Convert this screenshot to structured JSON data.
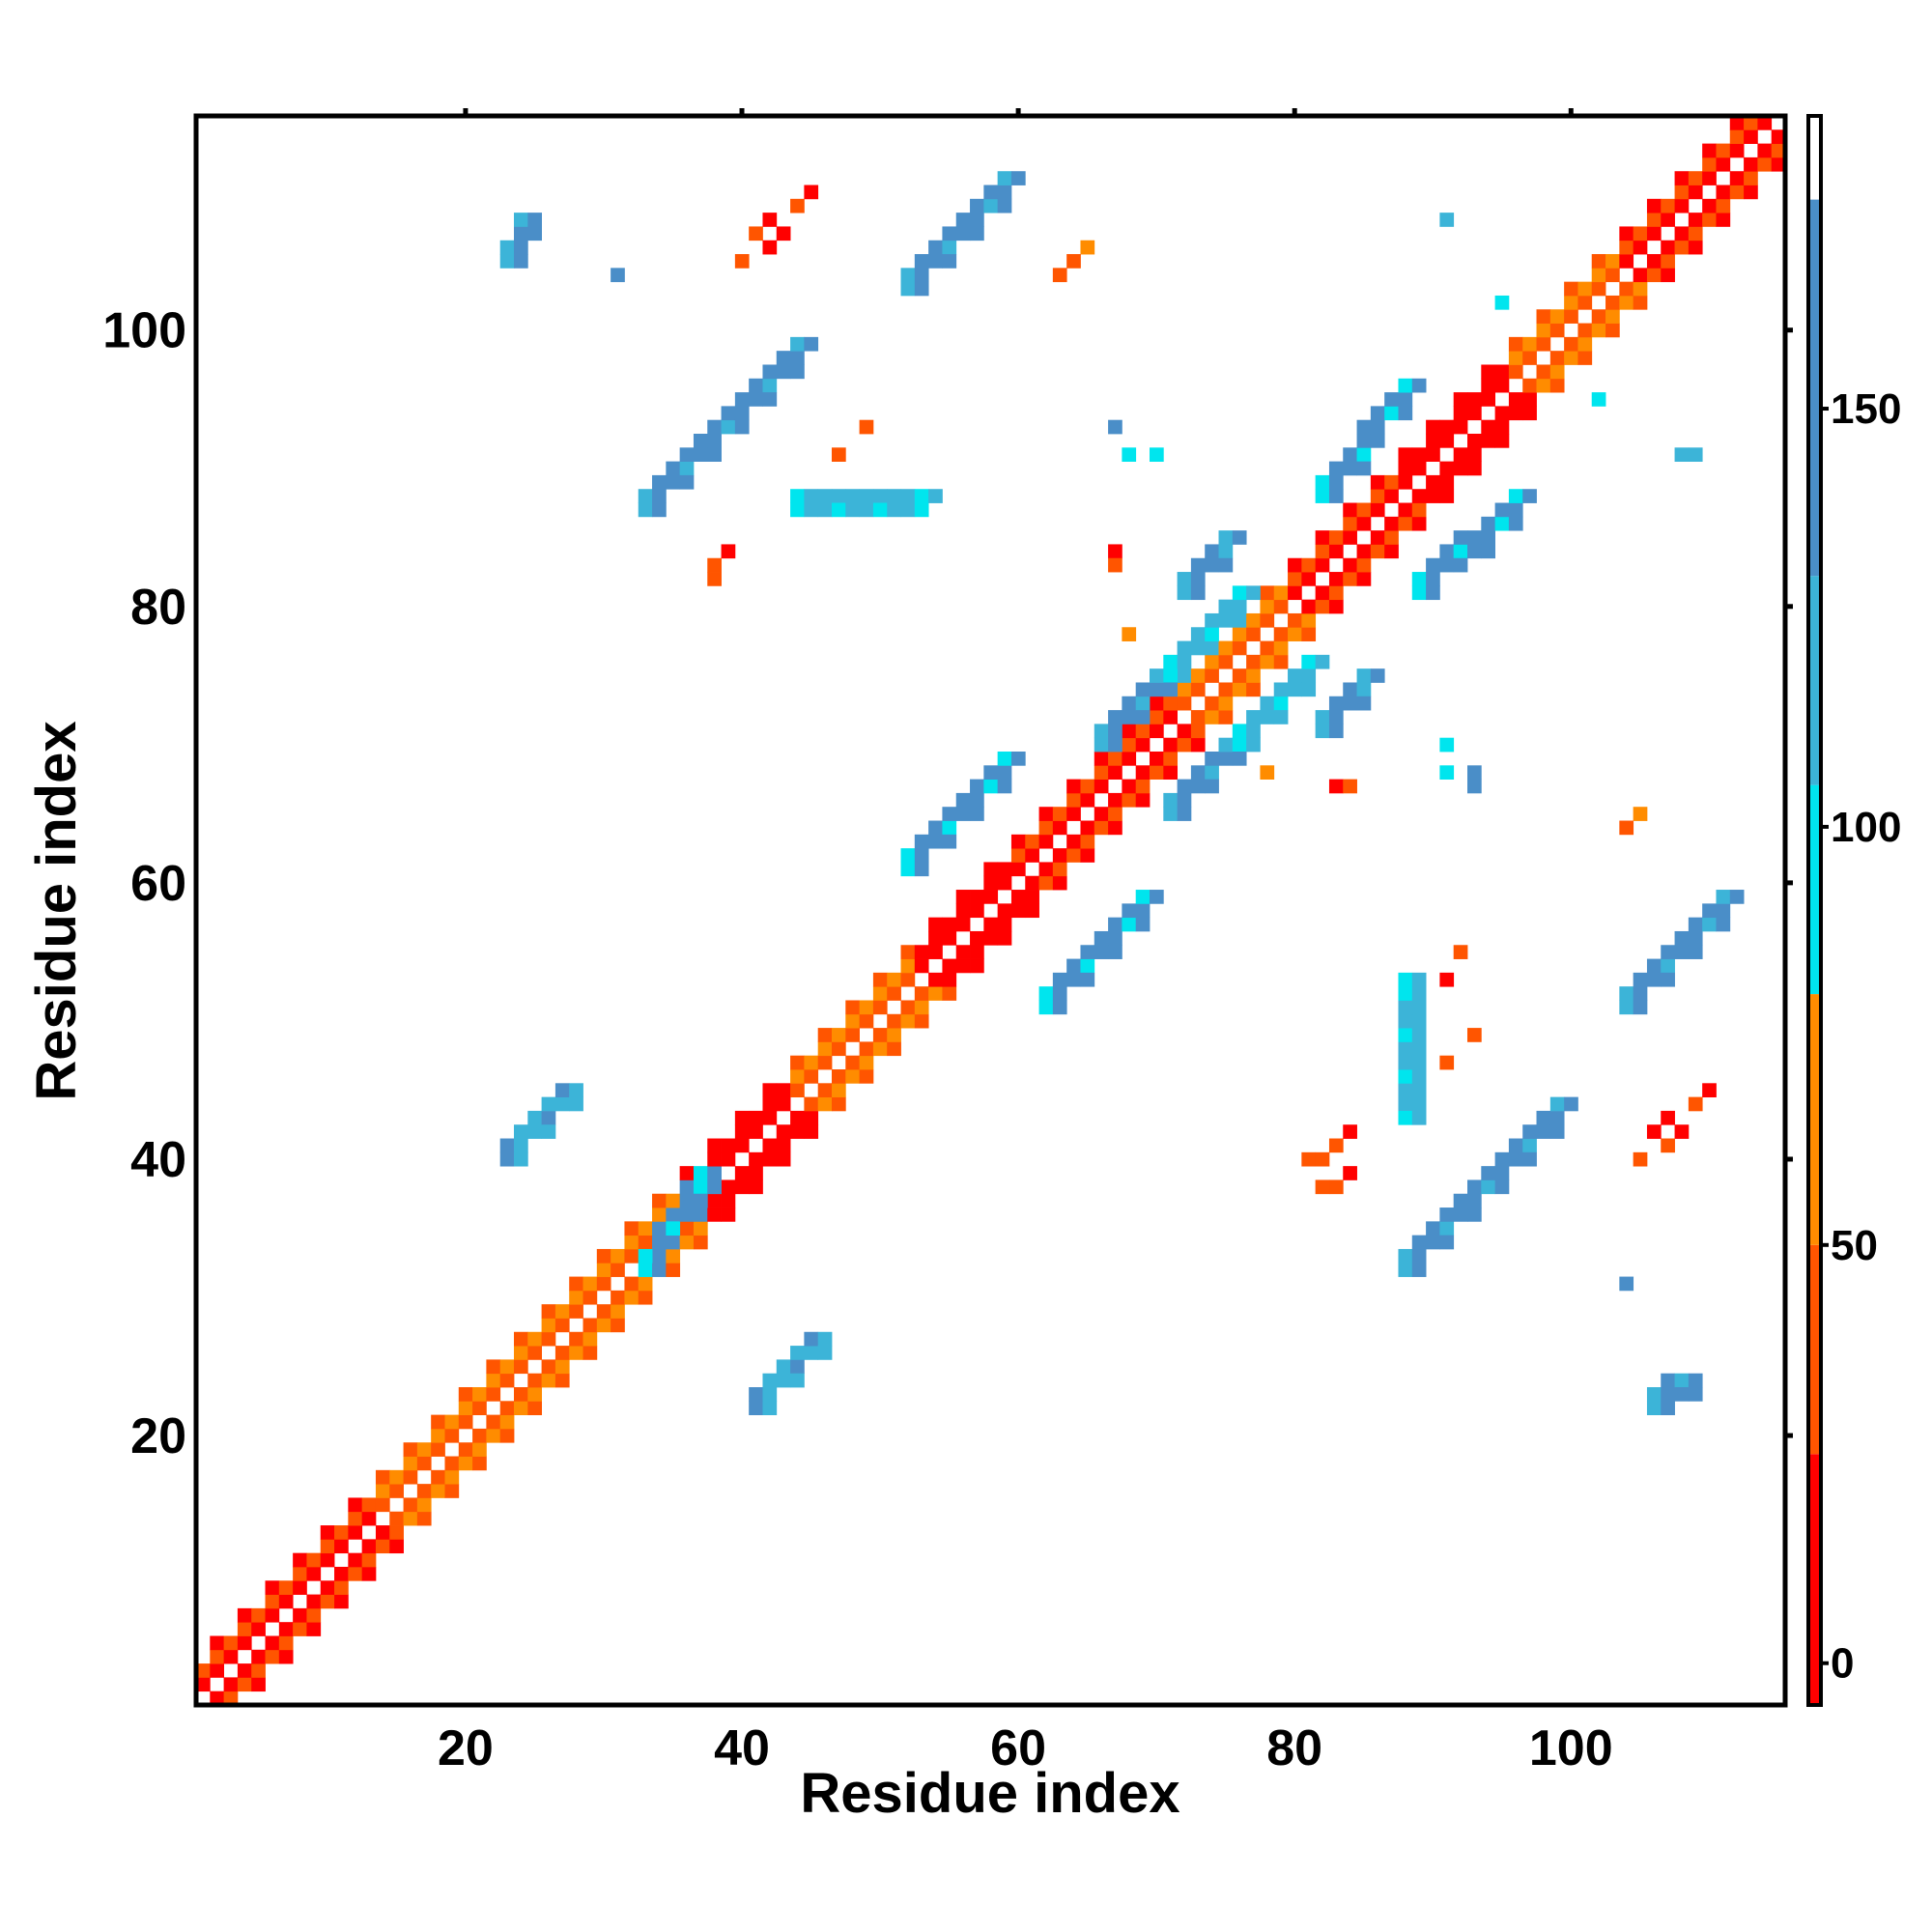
{
  "chart_data": {
    "type": "heatmap",
    "title": "",
    "xlabel": "Residue index",
    "ylabel": "Residue index",
    "xlim": [
      0.5,
      115.5
    ],
    "ylim": [
      0.5,
      115.5
    ],
    "xticks": [
      20,
      40,
      60,
      80,
      100
    ],
    "yticks": [
      20,
      40,
      60,
      80,
      100
    ],
    "colorbar": {
      "ticks": [
        0,
        50,
        100,
        150
      ],
      "range": [
        -5,
        185
      ],
      "bands": [
        {
          "from": -5,
          "to": 25,
          "color": "#ff0000"
        },
        {
          "from": 25,
          "to": 50,
          "color": "#ff5500"
        },
        {
          "from": 50,
          "to": 80,
          "color": "#ff8c00"
        },
        {
          "from": 80,
          "to": 105,
          "color": "#00e5ee"
        },
        {
          "from": 105,
          "to": 130,
          "color": "#3cb4d8"
        },
        {
          "from": 130,
          "to": 175,
          "color": "#4a8ec8"
        },
        {
          "from": 175,
          "to": 185,
          "color": "#ffffff"
        }
      ]
    },
    "colors": {
      "red": "#ff0000",
      "orange_red": "#ff5500",
      "orange": "#ff8c00",
      "cyan": "#00e5ee",
      "light_blue": "#3cb4d8",
      "blue": "#4a8ec8"
    },
    "diagonal": {
      "from": 1,
      "to": 115
    },
    "diagonal_bands": [
      {
        "from": 1,
        "to": 5,
        "near": "#ff0000",
        "far": "#ff5500"
      },
      {
        "from": 6,
        "to": 14,
        "near": "#ff0000",
        "far": "#ff5500"
      },
      {
        "from": 14,
        "to": 22,
        "near": "#ff5500",
        "far": "#ff8c00"
      },
      {
        "from": 22,
        "to": 36,
        "near": "#ff5500",
        "far": "#ff8c00"
      },
      {
        "from": 36,
        "to": 44,
        "near": "#ff0000",
        "far": "#ff0000"
      },
      {
        "from": 44,
        "to": 53,
        "near": "#ff5500",
        "far": "#ff8c00"
      },
      {
        "from": 53,
        "to": 60,
        "near": "#ff0000",
        "far": "#ff0000"
      },
      {
        "from": 60,
        "to": 72,
        "near": "#ff0000",
        "far": "#ff5500"
      },
      {
        "from": 72,
        "to": 80,
        "near": "#ff5500",
        "far": "#ff8c00"
      },
      {
        "from": 80,
        "to": 88,
        "near": "#ff0000",
        "far": "#ff5500"
      },
      {
        "from": 88,
        "to": 96,
        "near": "#ff0000",
        "far": "#ff0000"
      },
      {
        "from": 96,
        "to": 104,
        "near": "#ff5500",
        "far": "#ff8c00"
      },
      {
        "from": 104,
        "to": 115,
        "near": "#ff0000",
        "far": "#ff5500"
      }
    ],
    "strands": [
      {
        "x": [
          33,
          44
        ],
        "y": [
          88,
          99
        ],
        "main": "#4a8ec8",
        "edge": "#3cb4d8"
      },
      {
        "x": [
          44,
          53
        ],
        "y": [
          88,
          88
        ],
        "main": "#3cb4d8",
        "edge": "#00e5ee"
      },
      {
        "x": [
          88,
          99
        ],
        "y": [
          33,
          44
        ],
        "main": "#4a8ec8",
        "edge": "#3cb4d8"
      },
      {
        "x": [
          88,
          88
        ],
        "y": [
          44,
          53
        ],
        "main": "#3cb4d8",
        "edge": "#00e5ee"
      },
      {
        "x": [
          52,
          59
        ],
        "y": [
          104,
          111
        ],
        "main": "#4a8ec8",
        "edge": "#3cb4d8"
      },
      {
        "x": [
          104,
          111
        ],
        "y": [
          52,
          59
        ],
        "main": "#4a8ec8",
        "edge": "#3cb4d8"
      },
      {
        "x": [
          52,
          59
        ],
        "y": [
          62,
          69
        ],
        "main": "#4a8ec8",
        "edge": "#00e5ee"
      },
      {
        "x": [
          62,
          69
        ],
        "y": [
          52,
          59
        ],
        "main": "#4a8ec8",
        "edge": "#00e5ee"
      },
      {
        "x": [
          66,
          70
        ],
        "y": [
          71,
          75
        ],
        "main": "#4a8ec8",
        "edge": "#3cb4d8"
      },
      {
        "x": [
          71,
          75
        ],
        "y": [
          66,
          70
        ],
        "main": "#4a8ec8",
        "edge": "#3cb4d8"
      },
      {
        "x": [
          82,
          88
        ],
        "y": [
          89,
          96
        ],
        "main": "#4a8ec8",
        "edge": "#00e5ee"
      },
      {
        "x": [
          89,
          96
        ],
        "y": [
          82,
          88
        ],
        "main": "#4a8ec8",
        "edge": "#00e5ee"
      },
      {
        "x": [
          23,
          27
        ],
        "y": [
          41,
          45
        ],
        "main": "#3cb4d8",
        "edge": "#4a8ec8"
      },
      {
        "x": [
          41,
          45
        ],
        "y": [
          23,
          27
        ],
        "main": "#3cb4d8",
        "edge": "#4a8ec8"
      },
      {
        "x": [
          33,
          37
        ],
        "y": [
          33,
          39
        ],
        "main": "#4a8ec8",
        "edge": "#00e5ee"
      },
      {
        "x": [
          72,
          75
        ],
        "y": [
          82,
          85
        ],
        "main": "#4a8ec8",
        "edge": "#3cb4d8"
      },
      {
        "x": [
          82,
          85
        ],
        "y": [
          72,
          75
        ],
        "main": "#4a8ec8",
        "edge": "#3cb4d8"
      },
      {
        "x": [
          71,
          76
        ],
        "y": [
          76,
          81
        ],
        "main": "#3cb4d8",
        "edge": "#00e5ee"
      },
      {
        "x": [
          76,
          81
        ],
        "y": [
          71,
          76
        ],
        "main": "#3cb4d8",
        "edge": "#00e5ee"
      },
      {
        "x": [
          23,
          24
        ],
        "y": [
          106,
          108
        ],
        "main": "#4a8ec8",
        "edge": "#3cb4d8"
      },
      {
        "x": [
          106,
          108
        ],
        "y": [
          23,
          24
        ],
        "main": "#4a8ec8",
        "edge": "#3cb4d8"
      }
    ],
    "points": [
      {
        "x": 44,
        "y": 109,
        "c": "#ff5500"
      },
      {
        "x": 42,
        "y": 108,
        "c": "#ff0000"
      },
      {
        "x": 43,
        "y": 107,
        "c": "#ff0000"
      },
      {
        "x": 41,
        "y": 107,
        "c": "#ff5500"
      },
      {
        "x": 42,
        "y": 106,
        "c": "#ff0000"
      },
      {
        "x": 40,
        "y": 105,
        "c": "#ff5500"
      },
      {
        "x": 109,
        "y": 44,
        "c": "#ff5500"
      },
      {
        "x": 108,
        "y": 42,
        "c": "#ff0000"
      },
      {
        "x": 107,
        "y": 43,
        "c": "#ff0000"
      },
      {
        "x": 107,
        "y": 41,
        "c": "#ff5500"
      },
      {
        "x": 106,
        "y": 42,
        "c": "#ff0000"
      },
      {
        "x": 105,
        "y": 40,
        "c": "#ff5500"
      },
      {
        "x": 65,
        "y": 106,
        "c": "#ff8c00"
      },
      {
        "x": 64,
        "y": 105,
        "c": "#ff5500"
      },
      {
        "x": 63,
        "y": 104,
        "c": "#ff5500"
      },
      {
        "x": 39,
        "y": 84,
        "c": "#ff0000"
      },
      {
        "x": 38,
        "y": 83,
        "c": "#ff5500"
      },
      {
        "x": 38,
        "y": 82,
        "c": "#ff5500"
      },
      {
        "x": 84,
        "y": 39,
        "c": "#ff0000"
      },
      {
        "x": 83,
        "y": 38,
        "c": "#ff5500"
      },
      {
        "x": 82,
        "y": 38,
        "c": "#ff5500"
      },
      {
        "x": 49,
        "y": 93,
        "c": "#ff5500"
      },
      {
        "x": 47,
        "y": 91,
        "c": "#ff5500"
      },
      {
        "x": 93,
        "y": 49,
        "c": "#ff5500"
      },
      {
        "x": 91,
        "y": 47,
        "c": "#ff5500"
      },
      {
        "x": 67,
        "y": 84,
        "c": "#ff0000"
      },
      {
        "x": 67,
        "y": 83,
        "c": "#ff5500"
      },
      {
        "x": 83,
        "y": 67,
        "c": "#ff0000"
      },
      {
        "x": 84,
        "y": 67,
        "c": "#ff5500"
      },
      {
        "x": 68,
        "y": 78,
        "c": "#ff8c00"
      },
      {
        "x": 78,
        "y": 68,
        "c": "#ff8c00"
      },
      {
        "x": 105,
        "y": 65,
        "c": "#ff8c00"
      },
      {
        "x": 104,
        "y": 64,
        "c": "#ff5500"
      },
      {
        "x": 68,
        "y": 91,
        "c": "#00e5ee"
      },
      {
        "x": 67,
        "y": 93,
        "c": "#4a8ec8"
      },
      {
        "x": 91,
        "y": 68,
        "c": "#00e5ee"
      },
      {
        "x": 93,
        "y": 67,
        "c": "#4a8ec8"
      },
      {
        "x": 91,
        "y": 108,
        "c": "#3cb4d8"
      },
      {
        "x": 108,
        "y": 91,
        "c": "#3cb4d8"
      },
      {
        "x": 31,
        "y": 104,
        "c": "#4a8ec8"
      },
      {
        "x": 104,
        "y": 31,
        "c": "#4a8ec8"
      },
      {
        "x": 95,
        "y": 102,
        "c": "#00e5ee"
      },
      {
        "x": 102,
        "y": 95,
        "c": "#00e5ee"
      },
      {
        "x": 91,
        "y": 70,
        "c": "#00e5ee"
      },
      {
        "x": 70,
        "y": 91,
        "c": "#00e5ee"
      },
      {
        "x": 93,
        "y": 68,
        "c": "#4a8ec8"
      },
      {
        "x": 110,
        "y": 45,
        "c": "#ff0000"
      },
      {
        "x": 45,
        "y": 110,
        "c": "#ff0000"
      },
      {
        "x": 81,
        "y": 40,
        "c": "#ff5500"
      },
      {
        "x": 82,
        "y": 40,
        "c": "#ff5500"
      },
      {
        "x": 83,
        "y": 41,
        "c": "#ff5500"
      },
      {
        "x": 84,
        "y": 42,
        "c": "#ff0000"
      },
      {
        "x": 109,
        "y": 91,
        "c": "#3cb4d8"
      },
      {
        "x": 91,
        "y": 53,
        "c": "#ff0000"
      },
      {
        "x": 92,
        "y": 55,
        "c": "#ff5500"
      }
    ]
  }
}
